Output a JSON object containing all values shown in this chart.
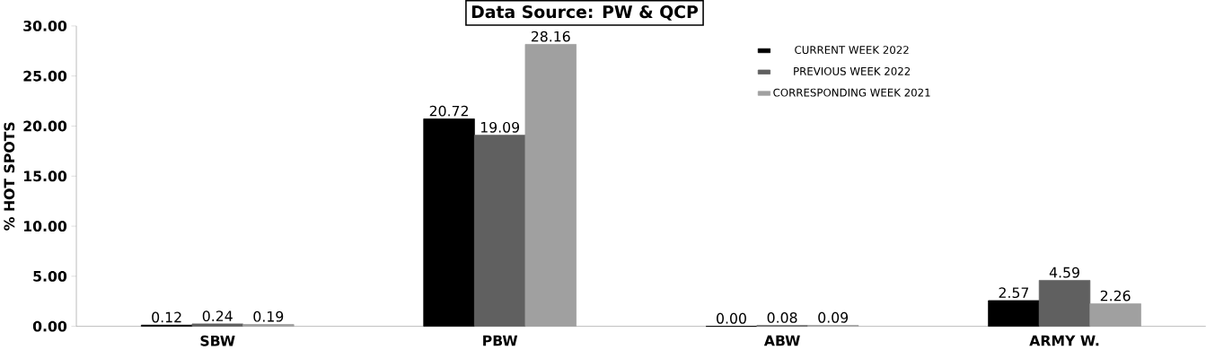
{
  "chart_data": {
    "type": "bar",
    "title": "Data Source: PW & QCP",
    "ylabel": "% HOT SPOTS",
    "categories": [
      "SBW",
      "PBW",
      "ABW",
      "ARMY W."
    ],
    "series": [
      {
        "name": "CURRENT WEEK 2022",
        "color": "#000000",
        "values": [
          0.12,
          20.72,
          0.0,
          2.57
        ],
        "value_labels": [
          "0.12",
          "20.72",
          "0.00",
          "2.57"
        ]
      },
      {
        "name": "PREVIOUS WEEK 2022",
        "color": "#606060",
        "values": [
          0.24,
          19.09,
          0.08,
          4.59
        ],
        "value_labels": [
          "0.24",
          "19.09",
          "0.08",
          "4.59"
        ]
      },
      {
        "name": "CORRESPONDING WEEK 2021",
        "color": "#a0a0a0",
        "values": [
          0.19,
          28.16,
          0.09,
          2.26
        ],
        "value_labels": [
          "0.19",
          "28.16",
          "0.09",
          "2.26"
        ]
      }
    ],
    "ylim": [
      0,
      30
    ],
    "yticks": [
      {
        "value": 0,
        "label": "0.00"
      },
      {
        "value": 5,
        "label": "5.00"
      },
      {
        "value": 10,
        "label": "10.00"
      },
      {
        "value": 15,
        "label": "15.00"
      },
      {
        "value": 20,
        "label": "20.00"
      },
      {
        "value": 25,
        "label": "25.00"
      },
      {
        "value": 30,
        "label": "30.00"
      }
    ],
    "grid": false,
    "legend": "top right"
  }
}
